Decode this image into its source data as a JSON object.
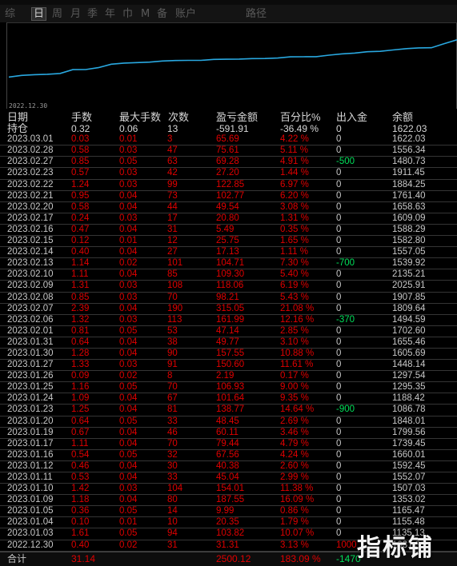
{
  "tabs": [
    {
      "label": "综"
    },
    {
      "label": "日"
    },
    {
      "label": "周"
    },
    {
      "label": "月"
    },
    {
      "label": "季"
    },
    {
      "label": "年"
    },
    {
      "label": "巾"
    },
    {
      "label": "M"
    },
    {
      "label": "备"
    },
    {
      "label": "账户"
    },
    {
      "label": "路径"
    }
  ],
  "active_tab": "日",
  "chart": {
    "start_date_label": "2022.12.30",
    "line_color": "#29a8e0",
    "balance_series": [
      1135.13,
      1155.48,
      1165.47,
      1353.02,
      1507.03,
      1552.07,
      1592.45,
      1660.01,
      1739.45,
      1799.56,
      1848.01,
      1086.78,
      1188.42,
      1295.35,
      1297.54,
      1448.14,
      1605.69,
      1655.46,
      1702.6,
      1494.59,
      1809.64,
      1907.85,
      2025.91,
      2135.21,
      1539.92,
      1557.05,
      1582.8,
      1588.29,
      1609.09,
      1658.63,
      1761.4,
      1884.25,
      1911.45,
      1480.73,
      1556.34,
      1622.03
    ]
  },
  "table": {
    "headers": [
      "日期",
      "手数",
      "最大手数",
      "次数",
      "盈亏金额",
      "百分比%",
      "出入金",
      "余额"
    ],
    "holding": {
      "date": "持仓",
      "lots": "0.32",
      "max_lots": "0.06",
      "count": "13",
      "pnl": "-591.91",
      "pct": "-36.49 %",
      "flow": "0",
      "balance": "1622.03"
    },
    "rows": [
      {
        "date": "2023.03.01",
        "lots": "0.03",
        "max_lots": "0.01",
        "count": "3",
        "pnl": "65.69",
        "pct": "4.22 %",
        "flow": "0",
        "balance": "1622.03"
      },
      {
        "date": "2023.02.28",
        "lots": "0.58",
        "max_lots": "0.03",
        "count": "47",
        "pnl": "75.61",
        "pct": "5.11 %",
        "flow": "0",
        "balance": "1556.34"
      },
      {
        "date": "2023.02.27",
        "lots": "0.85",
        "max_lots": "0.05",
        "count": "63",
        "pnl": "69.28",
        "pct": "4.91 %",
        "flow": "-500",
        "balance": "1480.73"
      },
      {
        "date": "2023.02.23",
        "lots": "0.57",
        "max_lots": "0.03",
        "count": "42",
        "pnl": "27.20",
        "pct": "1.44 %",
        "flow": "0",
        "balance": "1911.45"
      },
      {
        "date": "2023.02.22",
        "lots": "1.24",
        "max_lots": "0.03",
        "count": "99",
        "pnl": "122.85",
        "pct": "6.97 %",
        "flow": "0",
        "balance": "1884.25"
      },
      {
        "date": "2023.02.21",
        "lots": "0.95",
        "max_lots": "0.04",
        "count": "73",
        "pnl": "102.77",
        "pct": "6.20 %",
        "flow": "0",
        "balance": "1761.40"
      },
      {
        "date": "2023.02.20",
        "lots": "0.58",
        "max_lots": "0.04",
        "count": "44",
        "pnl": "49.54",
        "pct": "3.08 %",
        "flow": "0",
        "balance": "1658.63"
      },
      {
        "date": "2023.02.17",
        "lots": "0.24",
        "max_lots": "0.03",
        "count": "17",
        "pnl": "20.80",
        "pct": "1.31 %",
        "flow": "0",
        "balance": "1609.09"
      },
      {
        "date": "2023.02.16",
        "lots": "0.47",
        "max_lots": "0.04",
        "count": "31",
        "pnl": "5.49",
        "pct": "0.35 %",
        "flow": "0",
        "balance": "1588.29"
      },
      {
        "date": "2023.02.15",
        "lots": "0.12",
        "max_lots": "0.01",
        "count": "12",
        "pnl": "25.75",
        "pct": "1.65 %",
        "flow": "0",
        "balance": "1582.80"
      },
      {
        "date": "2023.02.14",
        "lots": "0.40",
        "max_lots": "0.04",
        "count": "27",
        "pnl": "17.13",
        "pct": "1.11 %",
        "flow": "0",
        "balance": "1557.05"
      },
      {
        "date": "2023.02.13",
        "lots": "1.14",
        "max_lots": "0.02",
        "count": "101",
        "pnl": "104.71",
        "pct": "7.30 %",
        "flow": "-700",
        "balance": "1539.92"
      },
      {
        "date": "2023.02.10",
        "lots": "1.11",
        "max_lots": "0.04",
        "count": "85",
        "pnl": "109.30",
        "pct": "5.40 %",
        "flow": "0",
        "balance": "2135.21"
      },
      {
        "date": "2023.02.09",
        "lots": "1.31",
        "max_lots": "0.03",
        "count": "108",
        "pnl": "118.06",
        "pct": "6.19 %",
        "flow": "0",
        "balance": "2025.91"
      },
      {
        "date": "2023.02.08",
        "lots": "0.85",
        "max_lots": "0.03",
        "count": "70",
        "pnl": "98.21",
        "pct": "5.43 %",
        "flow": "0",
        "balance": "1907.85"
      },
      {
        "date": "2023.02.07",
        "lots": "2.39",
        "max_lots": "0.04",
        "count": "190",
        "pnl": "315.05",
        "pct": "21.08 %",
        "flow": "0",
        "balance": "1809.64"
      },
      {
        "date": "2023.02.06",
        "lots": "1.32",
        "max_lots": "0.03",
        "count": "113",
        "pnl": "161.99",
        "pct": "12.16 %",
        "flow": "-370",
        "balance": "1494.59"
      },
      {
        "date": "2023.02.01",
        "lots": "0.81",
        "max_lots": "0.05",
        "count": "53",
        "pnl": "47.14",
        "pct": "2.85 %",
        "flow": "0",
        "balance": "1702.60"
      },
      {
        "date": "2023.01.31",
        "lots": "0.64",
        "max_lots": "0.04",
        "count": "38",
        "pnl": "49.77",
        "pct": "3.10 %",
        "flow": "0",
        "balance": "1655.46"
      },
      {
        "date": "2023.01.30",
        "lots": "1.28",
        "max_lots": "0.04",
        "count": "90",
        "pnl": "157.55",
        "pct": "10.88 %",
        "flow": "0",
        "balance": "1605.69"
      },
      {
        "date": "2023.01.27",
        "lots": "1.33",
        "max_lots": "0.03",
        "count": "91",
        "pnl": "150.60",
        "pct": "11.61 %",
        "flow": "0",
        "balance": "1448.14"
      },
      {
        "date": "2023.01.26",
        "lots": "0.09",
        "max_lots": "0.02",
        "count": "8",
        "pnl": "2.19",
        "pct": "0.17 %",
        "flow": "0",
        "balance": "1297.54"
      },
      {
        "date": "2023.01.25",
        "lots": "1.16",
        "max_lots": "0.05",
        "count": "70",
        "pnl": "106.93",
        "pct": "9.00 %",
        "flow": "0",
        "balance": "1295.35"
      },
      {
        "date": "2023.01.24",
        "lots": "1.09",
        "max_lots": "0.04",
        "count": "67",
        "pnl": "101.64",
        "pct": "9.35 %",
        "flow": "0",
        "balance": "1188.42"
      },
      {
        "date": "2023.01.23",
        "lots": "1.25",
        "max_lots": "0.04",
        "count": "81",
        "pnl": "138.77",
        "pct": "14.64 %",
        "flow": "-900",
        "balance": "1086.78"
      },
      {
        "date": "2023.01.20",
        "lots": "0.64",
        "max_lots": "0.05",
        "count": "33",
        "pnl": "48.45",
        "pct": "2.69 %",
        "flow": "0",
        "balance": "1848.01"
      },
      {
        "date": "2023.01.19",
        "lots": "0.67",
        "max_lots": "0.04",
        "count": "46",
        "pnl": "60.11",
        "pct": "3.46 %",
        "flow": "0",
        "balance": "1799.56"
      },
      {
        "date": "2023.01.17",
        "lots": "1.11",
        "max_lots": "0.04",
        "count": "70",
        "pnl": "79.44",
        "pct": "4.79 %",
        "flow": "0",
        "balance": "1739.45"
      },
      {
        "date": "2023.01.16",
        "lots": "0.54",
        "max_lots": "0.05",
        "count": "32",
        "pnl": "67.56",
        "pct": "4.24 %",
        "flow": "0",
        "balance": "1660.01"
      },
      {
        "date": "2023.01.12",
        "lots": "0.46",
        "max_lots": "0.04",
        "count": "30",
        "pnl": "40.38",
        "pct": "2.60 %",
        "flow": "0",
        "balance": "1592.45"
      },
      {
        "date": "2023.01.11",
        "lots": "0.53",
        "max_lots": "0.04",
        "count": "33",
        "pnl": "45.04",
        "pct": "2.99 %",
        "flow": "0",
        "balance": "1552.07"
      },
      {
        "date": "2023.01.10",
        "lots": "1.42",
        "max_lots": "0.03",
        "count": "104",
        "pnl": "154.01",
        "pct": "11.38 %",
        "flow": "0",
        "balance": "1507.03"
      },
      {
        "date": "2023.01.09",
        "lots": "1.18",
        "max_lots": "0.04",
        "count": "80",
        "pnl": "187.55",
        "pct": "16.09 %",
        "flow": "0",
        "balance": "1353.02"
      },
      {
        "date": "2023.01.05",
        "lots": "0.36",
        "max_lots": "0.05",
        "count": "14",
        "pnl": "9.99",
        "pct": "0.86 %",
        "flow": "0",
        "balance": "1165.47"
      },
      {
        "date": "2023.01.04",
        "lots": "0.10",
        "max_lots": "0.01",
        "count": "10",
        "pnl": "20.35",
        "pct": "1.79 %",
        "flow": "0",
        "balance": "1155.48"
      },
      {
        "date": "2023.01.03",
        "lots": "1.61",
        "max_lots": "0.05",
        "count": "94",
        "pnl": "103.82",
        "pct": "10.07 %",
        "flow": "0",
        "balance": "1135.13"
      },
      {
        "date": "2022.12.30",
        "lots": "0.40",
        "max_lots": "0.02",
        "count": "31",
        "pnl": "31.31",
        "pct": "3.13 %",
        "flow": "1000",
        "balance": "1031.31"
      }
    ],
    "total": {
      "label": "合计",
      "lots": "31.14",
      "pnl": "2500.12",
      "pct": "183.09 %",
      "flow": "-1470"
    }
  },
  "watermark": "指标铺",
  "colors": {
    "positive": "#e00000",
    "negative": "#00e05a",
    "neutral": "#c8c8c8",
    "background": "#000000"
  }
}
